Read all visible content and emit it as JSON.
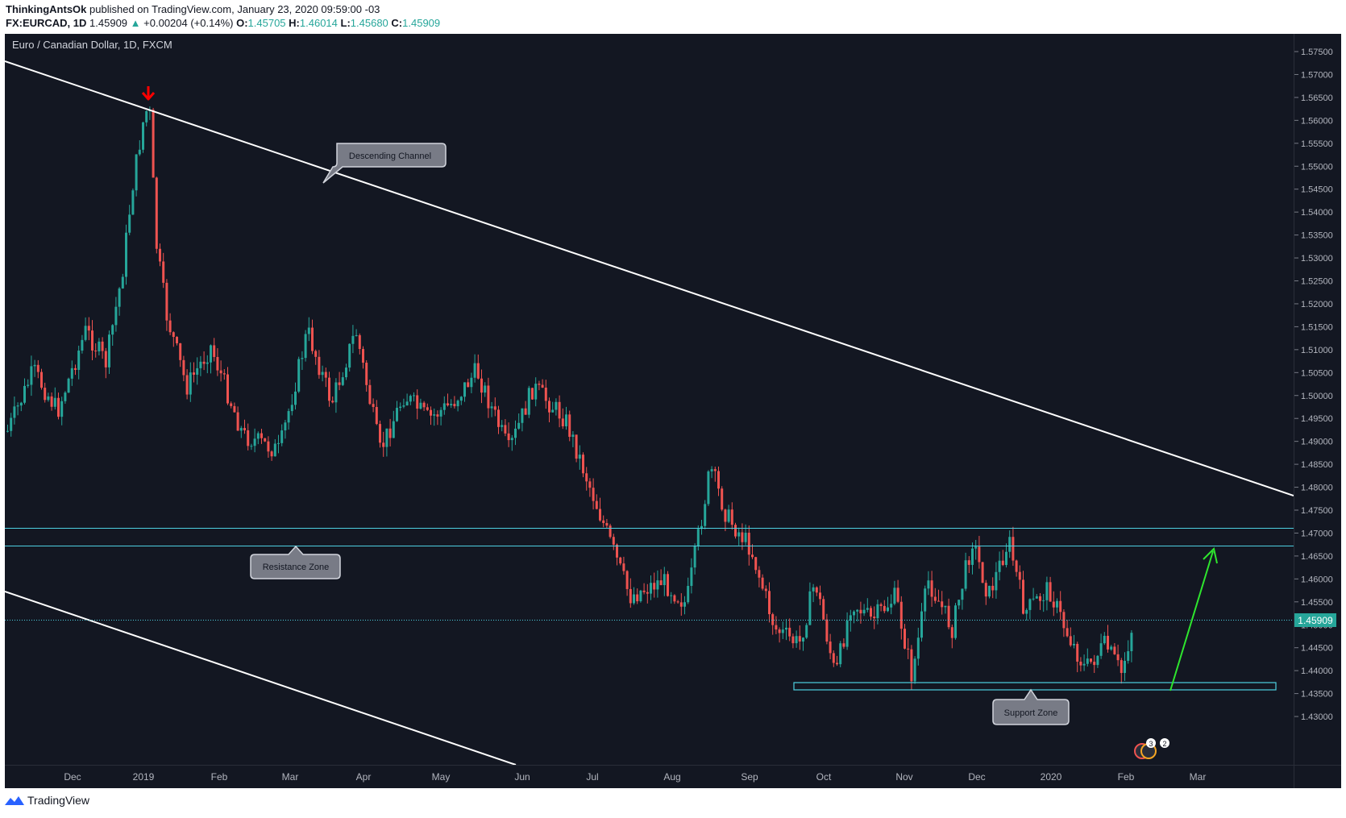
{
  "header": {
    "author": "ThinkingAntsOk",
    "published_text": "published on TradingView.com, January 23, 2020 09:59:00 -03",
    "symbol": "FX:EURCAD, 1D",
    "last": "1.45909",
    "change_arrow": "▲",
    "change": "+0.00204 (+0.14%)",
    "o_label": "O:",
    "o": "1.45705",
    "h_label": "H:",
    "h": "1.46014",
    "l_label": "L:",
    "l": "1.45680",
    "c_label": "C:",
    "c": "1.45909"
  },
  "chart": {
    "title": "Euro / Canadian Dollar, 1D, FXCM",
    "price_labels": [
      "1.57500",
      "1.57000",
      "1.56500",
      "1.56000",
      "1.55500",
      "1.55000",
      "1.54500",
      "1.54000",
      "1.53500",
      "1.53000",
      "1.52500",
      "1.52000",
      "1.51500",
      "1.51000",
      "1.50500",
      "1.50000",
      "1.49500",
      "1.49000",
      "1.48500",
      "1.48000",
      "1.47500",
      "1.47000",
      "1.46500",
      "1.46000",
      "1.45500",
      "1.45000",
      "1.44500",
      "1.44000",
      "1.43500",
      "1.43000"
    ],
    "current_price": "1.45909",
    "time_labels": [
      "Dec",
      "2019",
      "Feb",
      "Mar",
      "Apr",
      "May",
      "Jun",
      "Jul",
      "Aug",
      "Sep",
      "Oct",
      "Nov",
      "Dec",
      "2020",
      "Feb",
      "Mar"
    ],
    "callouts": {
      "descending": "Descending Channel",
      "resistance": "Resistance Zone",
      "support": "Support Zone"
    },
    "event_badges": [
      "3",
      "2"
    ],
    "colors": {
      "background": "#131722",
      "up": "#26a69a",
      "down": "#ef5350",
      "zone": "#4dd0e1",
      "trend": "#ffffff",
      "arrow_green": "#2ee62e",
      "arrow_red": "#ff0000"
    }
  },
  "footer": {
    "brand": "TradingView",
    "logo_icon": "tradingview-logo-icon"
  }
}
